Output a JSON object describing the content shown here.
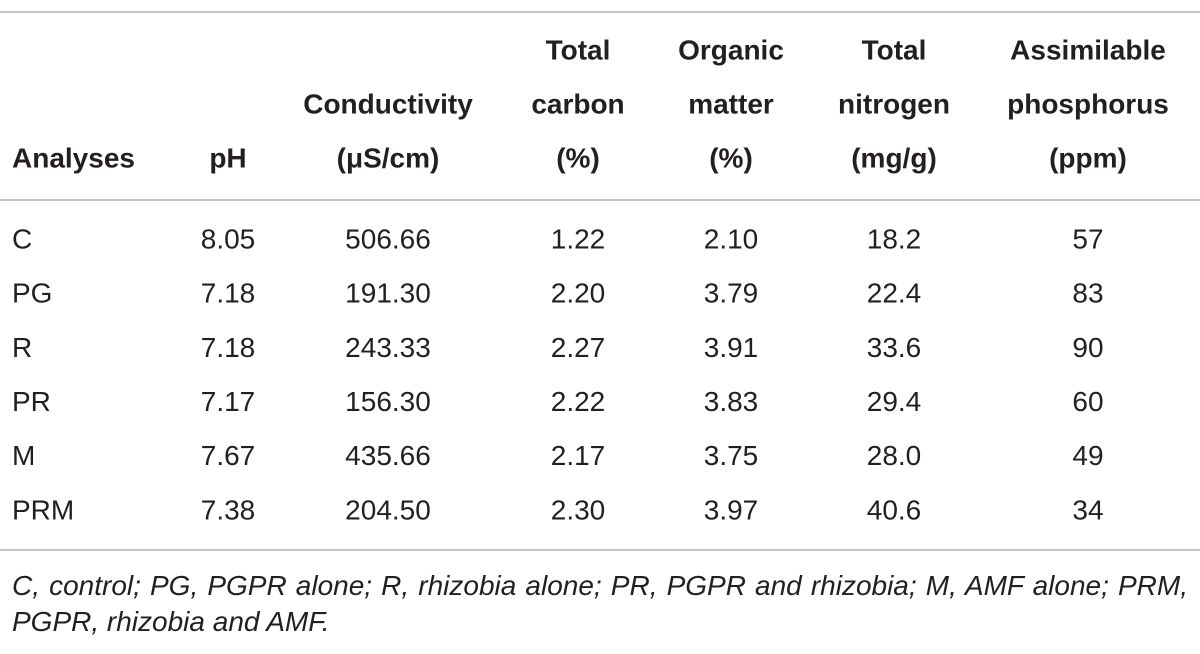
{
  "table": {
    "header": [
      [
        "Analyses"
      ],
      [
        "pH"
      ],
      [
        "Conductivity",
        "(μS/cm)"
      ],
      [
        "Total",
        "carbon",
        "(%)"
      ],
      [
        "Organic",
        "matter",
        "(%)"
      ],
      [
        "Total",
        "nitrogen",
        "(mg/g)"
      ],
      [
        "Assimilable",
        "phosphorus",
        "(ppm)"
      ]
    ],
    "rows": [
      [
        "C",
        "8.05",
        "506.66",
        "1.22",
        "2.10",
        "18.2",
        "57"
      ],
      [
        "PG",
        "7.18",
        "191.30",
        "2.20",
        "3.79",
        "22.4",
        "83"
      ],
      [
        "R",
        "7.18",
        "243.33",
        "2.27",
        "3.91",
        "33.6",
        "90"
      ],
      [
        "PR",
        "7.17",
        "156.30",
        "2.22",
        "3.83",
        "29.4",
        "60"
      ],
      [
        "M",
        "7.67",
        "435.66",
        "2.17",
        "3.75",
        "28.0",
        "49"
      ],
      [
        "PRM",
        "7.38",
        "204.50",
        "2.30",
        "3.97",
        "40.6",
        "34"
      ]
    ],
    "footnote": "C, control; PG, PGPR alone; R, rhizobia alone; PR, PGPR and rhizobia; M, AMF alone; PRM, PGPR, rhizobia and AMF."
  }
}
